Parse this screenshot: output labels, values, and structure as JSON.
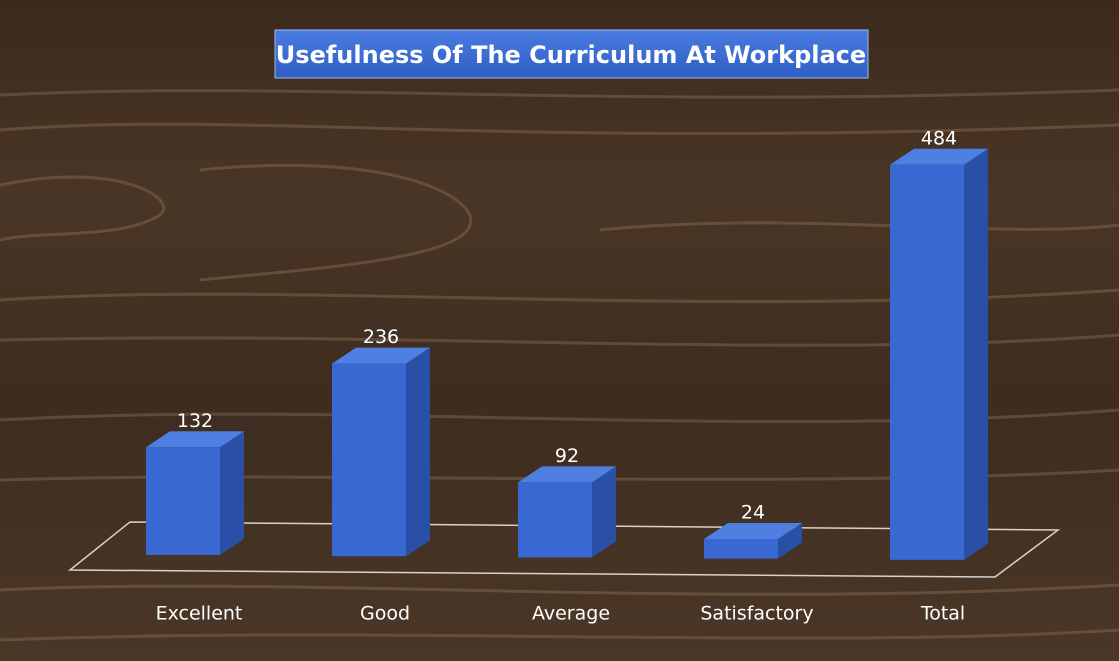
{
  "chart_data": {
    "type": "bar",
    "title": "Usefulness Of The Curriculum At Workplace",
    "categories": [
      "Excellent",
      "Good",
      "Average",
      "Satisfactory",
      "Total"
    ],
    "values": [
      132,
      236,
      92,
      24,
      484
    ],
    "color": "#3a68d2"
  }
}
